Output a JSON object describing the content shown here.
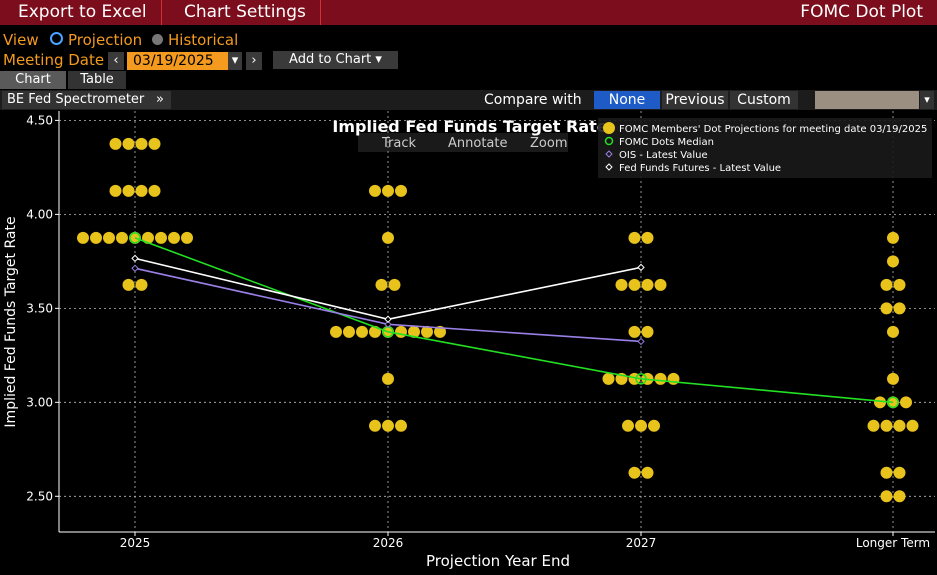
{
  "header": {
    "buttons": [
      "Export to Excel",
      "Chart Settings"
    ],
    "title": "FOMC Dot Plot"
  },
  "controls": {
    "view_label": "View",
    "view_options": [
      "Projection",
      "Historical"
    ],
    "meeting_date_label": "Meeting Date",
    "meeting_date": "03/19/2025",
    "add_to_chart": "Add to Chart"
  },
  "tabs": [
    "Chart",
    "Table"
  ],
  "toolbar": {
    "source": "BE Fed Spectrometer",
    "compare_label": "Compare with",
    "compare_options": [
      "None",
      "Previous",
      "Custom"
    ]
  },
  "chart_tools": [
    "Track",
    "Annotate",
    "Zoom"
  ],
  "chart_data": {
    "type": "dot_plot",
    "title": "Implied Fed Funds Target Rate",
    "y_label": "Implied Fed Funds Target Rate",
    "x_label": "Projection Year End",
    "categories": [
      "2025",
      "2026",
      "2027",
      "Longer Term"
    ],
    "ylim": [
      2.31,
      4.55
    ],
    "yticks": [
      {
        "value": 2.5,
        "label": "2.50"
      },
      {
        "value": 3,
        "label": "3.00"
      },
      {
        "value": 3.5,
        "label": "3.50"
      },
      {
        "value": 4,
        "label": "4.00"
      },
      {
        "value": 4.5,
        "label": "4.50"
      }
    ],
    "grid": true,
    "series": [
      {
        "name": "FOMC Members' Dot Projections for meeting date 03/19/2025",
        "color": "#e8c31c",
        "marker": "dot",
        "values": [
          [
            4.375,
            4.375,
            4.375,
            4.375,
            4.125,
            4.125,
            4.125,
            4.125,
            3.875,
            3.875,
            3.875,
            3.875,
            3.875,
            3.875,
            3.875,
            3.875,
            3.875,
            3.625,
            3.625
          ],
          [
            4.125,
            4.125,
            4.125,
            3.875,
            3.625,
            3.625,
            3.375,
            3.375,
            3.375,
            3.375,
            3.375,
            3.375,
            3.375,
            3.375,
            3.375,
            3.125,
            2.875,
            2.875,
            2.875
          ],
          [
            3.875,
            3.875,
            3.625,
            3.625,
            3.625,
            3.625,
            3.375,
            3.375,
            3.125,
            3.125,
            3.125,
            3.125,
            3.125,
            3.125,
            2.875,
            2.875,
            2.875,
            2.625,
            2.625
          ],
          [
            3.875,
            3.75,
            3.625,
            3.625,
            3.5,
            3.5,
            3.375,
            3.125,
            3,
            3,
            3,
            2.875,
            2.875,
            2.875,
            2.875,
            2.625,
            2.625,
            2.5,
            2.5
          ]
        ]
      },
      {
        "name": "FOMC Dots Median",
        "color": "#22e022",
        "marker": "line",
        "values": [
          3.875,
          3.375,
          3.125,
          3
        ]
      },
      {
        "name": "OIS - Latest Value",
        "color": "#9a80e6",
        "marker": "line",
        "values": [
          3.713,
          3.415,
          3.324,
          null
        ]
      },
      {
        "name": "Fed Funds Futures - Latest Value",
        "color": "#ffffff",
        "marker": "line",
        "values": [
          3.766,
          3.442,
          3.718,
          null
        ]
      }
    ]
  }
}
